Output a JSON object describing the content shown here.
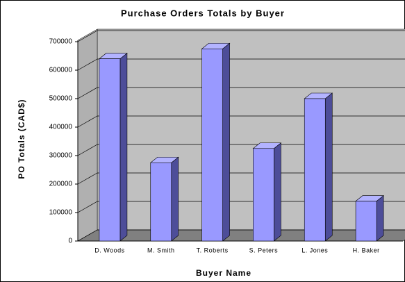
{
  "chart_data": {
    "type": "bar3d",
    "title": "Purchase Orders Totals by Buyer",
    "x_label": "Buyer Name",
    "y_label": "PO Totals (CAD$)",
    "categories": [
      "D. Woods",
      "M. Smith",
      "T. Roberts",
      "S. Peters",
      "L. Jones",
      "H. Baker"
    ],
    "values": [
      640000,
      275000,
      675000,
      325000,
      500000,
      140000
    ],
    "color": "#9999ff",
    "ylim": [
      0,
      700000
    ],
    "yticks": [
      0,
      100000,
      200000,
      300000,
      400000,
      500000,
      600000,
      700000
    ],
    "grid": true
  }
}
